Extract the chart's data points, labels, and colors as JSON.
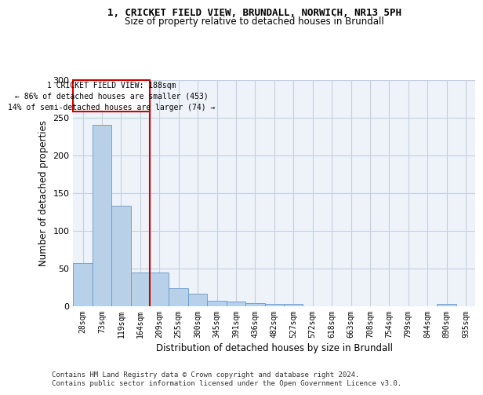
{
  "title_line1": "1, CRICKET FIELD VIEW, BRUNDALL, NORWICH, NR13 5PH",
  "title_line2": "Size of property relative to detached houses in Brundall",
  "xlabel": "Distribution of detached houses by size in Brundall",
  "ylabel": "Number of detached properties",
  "bar_labels": [
    "28sqm",
    "73sqm",
    "119sqm",
    "164sqm",
    "209sqm",
    "255sqm",
    "300sqm",
    "345sqm",
    "391sqm",
    "436sqm",
    "482sqm",
    "527sqm",
    "572sqm",
    "618sqm",
    "663sqm",
    "708sqm",
    "754sqm",
    "799sqm",
    "844sqm",
    "890sqm",
    "935sqm"
  ],
  "bar_values": [
    57,
    241,
    133,
    44,
    44,
    23,
    16,
    7,
    6,
    4,
    3,
    3,
    0,
    0,
    0,
    0,
    0,
    0,
    0,
    3,
    0
  ],
  "bar_color": "#b8d0e8",
  "bar_edge_color": "#6699cc",
  "vline_x": 3.5,
  "vline_color": "#cc0000",
  "annotation_text": "1 CRICKET FIELD VIEW: 188sqm\n← 86% of detached houses are smaller (453)\n14% of semi-detached houses are larger (74) →",
  "annotation_box_color": "#cc0000",
  "ylim": [
    0,
    300
  ],
  "yticks": [
    0,
    50,
    100,
    150,
    200,
    250,
    300
  ],
  "footer_line1": "Contains HM Land Registry data © Crown copyright and database right 2024.",
  "footer_line2": "Contains public sector information licensed under the Open Government Licence v3.0.",
  "background_color": "#eef2f9",
  "grid_color": "#c5cfe0"
}
